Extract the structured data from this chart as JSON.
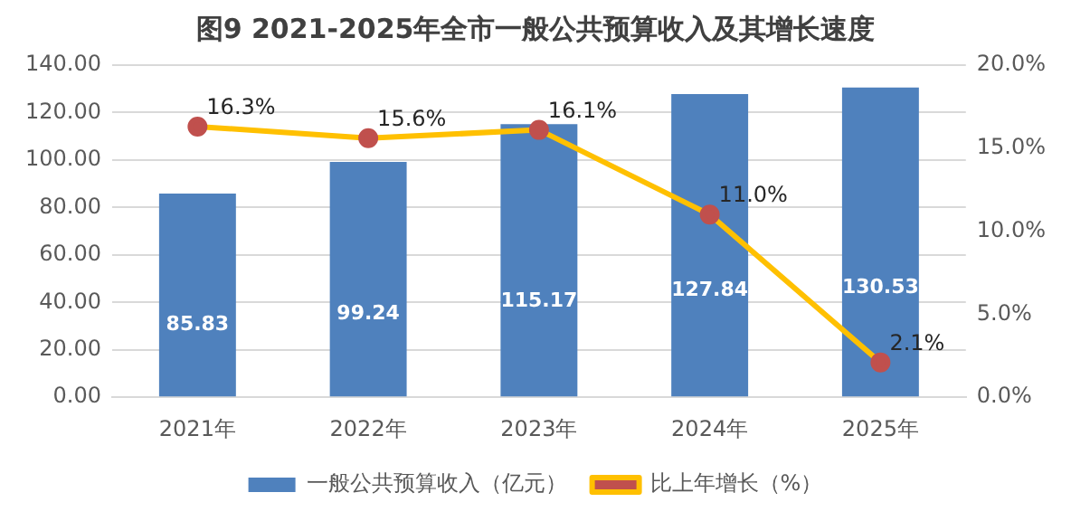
{
  "chart_data": {
    "type": "bar",
    "title": "图9 2021-2025年全市一般公共预算收入及其增长速度",
    "categories": [
      "2021年",
      "2022年",
      "2023年",
      "2024年",
      "2025年"
    ],
    "series": [
      {
        "name": "一般公共预算收入（亿元）",
        "type": "bar",
        "color": "#4f81bd",
        "values": [
          85.83,
          99.24,
          115.17,
          127.84,
          130.53
        ],
        "value_labels": [
          "85.83",
          "99.24",
          "115.17",
          "127.84",
          "130.53"
        ]
      },
      {
        "name": "比上年增长（%）",
        "type": "line",
        "axis": "y2",
        "color": "#ffc000",
        "colors": [
          "#c0504d",
          "#c0504d",
          "#c0504d",
          "#c0504d",
          "#c0504d"
        ],
        "values": [
          16.3,
          15.6,
          16.1,
          11.0,
          2.1
        ],
        "value_labels": [
          "16.3%",
          "15.6%",
          "16.1%",
          "11.0%",
          "2.1%"
        ]
      }
    ],
    "ylim": [
      0,
      140
    ],
    "yticks": [
      {
        "value": 0,
        "label": "0.00"
      },
      {
        "value": 20,
        "label": "20.00"
      },
      {
        "value": 40,
        "label": "40.00"
      },
      {
        "value": 60,
        "label": "60.00"
      },
      {
        "value": 80,
        "label": "80.00"
      },
      {
        "value": 100,
        "label": "100.00"
      },
      {
        "value": 120,
        "label": "120.00"
      },
      {
        "value": 140,
        "label": "140.00"
      }
    ],
    "y2lim": [
      0,
      20
    ],
    "y2ticks": [
      {
        "value": 0,
        "label": "0.0%"
      },
      {
        "value": 5,
        "label": "5.0%"
      },
      {
        "value": 10,
        "label": "10.0%"
      },
      {
        "value": 15,
        "label": "15.0%"
      },
      {
        "value": 20,
        "label": "20.0%"
      }
    ],
    "grid": "y",
    "legend": "bottom",
    "marker": "circle"
  }
}
